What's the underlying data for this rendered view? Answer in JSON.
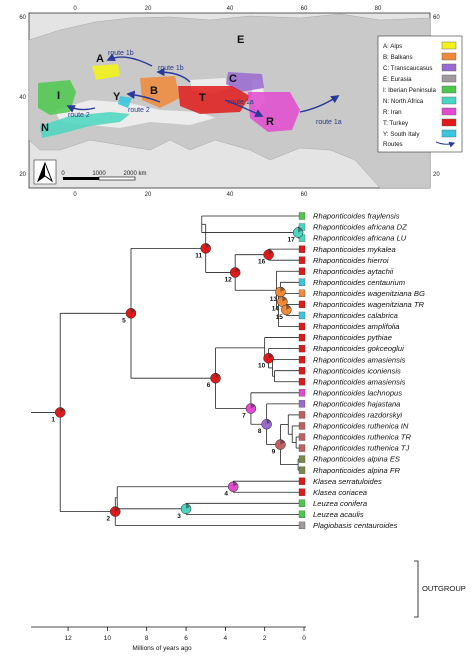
{
  "map": {
    "top_ticks": [
      "0",
      "20",
      "40",
      "60",
      "80"
    ],
    "bottom_ticks": [
      "0",
      "20",
      "40",
      "60"
    ],
    "left_ticks": [
      "60",
      "40",
      "20"
    ],
    "right_ticks": [
      "60",
      "40",
      "20"
    ],
    "scale_bar": [
      "0",
      "1000",
      "2000 km"
    ],
    "region_labels": [
      "A",
      "B",
      "C",
      "E",
      "I",
      "N",
      "R",
      "T",
      "Y"
    ],
    "routes": [
      "route 1b",
      "route 1b",
      "route 2",
      "route 2",
      "route 1a",
      "route 1a"
    ],
    "legend": [
      {
        "label": "A: Alps",
        "color": "#f2f21a"
      },
      {
        "label": "B: Balkans",
        "color": "#f08a3a"
      },
      {
        "label": "C: Transcaucasus",
        "color": "#9a6ad0"
      },
      {
        "label": "E: Eurasia",
        "color": "#a09aa0"
      },
      {
        "label": "I: Iberian Peninsula",
        "color": "#4cc94c"
      },
      {
        "label": "N: North Africa",
        "color": "#4ad7c0"
      },
      {
        "label": "R: Iran",
        "color": "#e24ad0"
      },
      {
        "label": "T: Turkey",
        "color": "#e01a1a"
      },
      {
        "label": "Y: South Italy",
        "color": "#3ac6e0"
      }
    ],
    "legend_routes_label": "Routes"
  },
  "tree": {
    "taxa": [
      "Rhaponticoides fraylensis",
      "Rhaponticoides africana DZ",
      "Rhaponticoides africana LU",
      "Rhaponticoides mykalea",
      "Rhaponticoides hierroi",
      "Rhaponticoides aytachii",
      "Rhaponticoides centaurium",
      "Rhaponticoides wagenitziana BG",
      "Rhaponticoides wagenitziana TR",
      "Rhaponticoides calabrica",
      "Rhaponticoides amplifolia",
      "Rhaponticoides pythiae",
      "Rhaponticoides gokceoglui",
      "Rhaponticoides amasiensis",
      "Rhaponticoides iconiensis",
      "Rhaponticoides amasiensis",
      "Rhaponticoides lachnopus",
      "Rhaponticoides hajastana",
      "Rhaponticoides razdorskyi",
      "Rhaponticoides ruthenica IN",
      "Rhaponticoides ruthenica TR",
      "Rhaponticoides ruthenica TJ",
      "Rhaponticoides alpina ES",
      "Rhaponticoides alpina FR",
      "Klasea serratuloides",
      "Klasea coriacea",
      "Leuzea conifera",
      "Leuzea acaulis",
      "Plagiobasis centauroides"
    ],
    "tip_colors": [
      "#4cc94c",
      "#4ad7c0",
      "#4ad7c0",
      "#e01a1a",
      "#e01a1a",
      "#e01a1a",
      "#3ac6e0",
      "#f08a3a",
      "#e01a1a",
      "#3ac6e0",
      "#e01a1a",
      "#e01a1a",
      "#e01a1a",
      "#e01a1a",
      "#e01a1a",
      "#e01a1a",
      "#e24ad0",
      "#9a6ad0",
      "#c06060",
      "#c06060",
      "#c06060",
      "#c06060",
      "#7a8a4a",
      "#7a8a4a",
      "#e01a1a",
      "#e01a1a",
      "#4cc94c",
      "#4cc94c",
      "#a09aa0"
    ],
    "node_numbers": [
      "1",
      "2",
      "3",
      "4",
      "5",
      "6",
      "7",
      "8",
      "9",
      "10",
      "11",
      "12",
      "13",
      "14",
      "15",
      "16",
      "17"
    ],
    "outgroup_label": "OUTGROUP",
    "axis_ticks": [
      "12",
      "10",
      "8",
      "6",
      "4",
      "2",
      "0"
    ],
    "axis_label": "Millions of years ago"
  }
}
